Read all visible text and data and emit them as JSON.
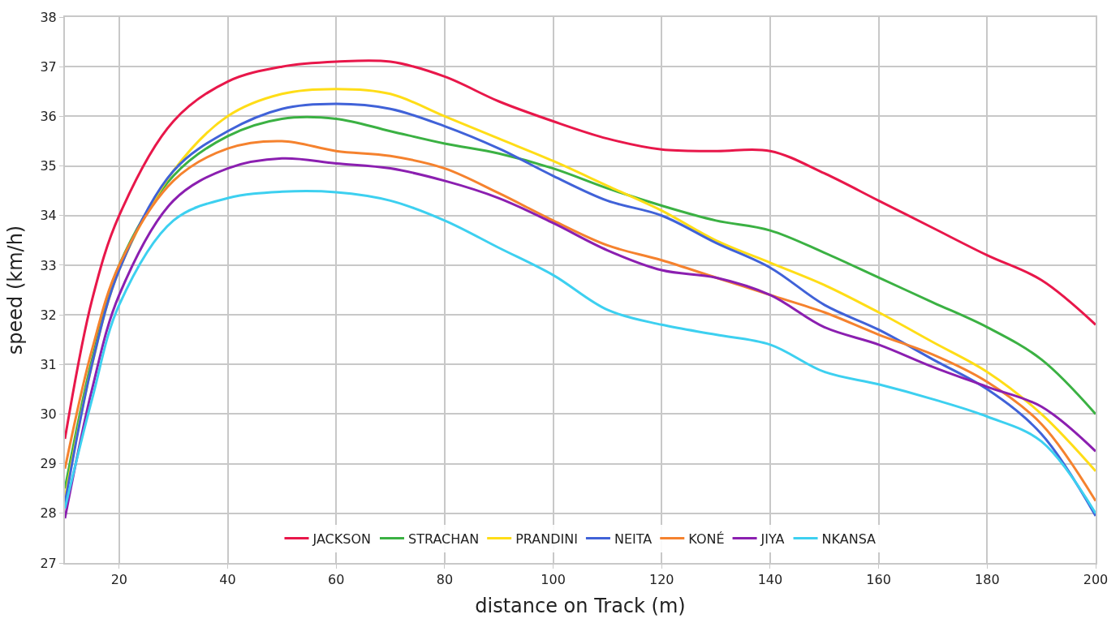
{
  "chart_data": {
    "type": "line",
    "xlabel": "distance on Track (m)",
    "ylabel": "speed (km/h)",
    "x": [
      10,
      15,
      20,
      30,
      40,
      50,
      60,
      70,
      80,
      90,
      100,
      110,
      120,
      130,
      140,
      150,
      160,
      170,
      180,
      190,
      200
    ],
    "series": [
      {
        "name": "JACKSON",
        "color": "#e8174a",
        "values": [
          29.5,
          32.3,
          34.0,
          35.9,
          36.7,
          37.0,
          37.1,
          37.1,
          36.8,
          36.3,
          35.9,
          35.55,
          35.33,
          35.3,
          35.3,
          34.85,
          34.3,
          33.75,
          33.2,
          32.7,
          31.8
        ]
      },
      {
        "name": "STRACHAN",
        "color": "#3bb143",
        "values": [
          28.5,
          31.1,
          33.0,
          34.8,
          35.6,
          35.95,
          35.95,
          35.7,
          35.45,
          35.25,
          34.95,
          34.55,
          34.2,
          33.9,
          33.7,
          33.25,
          32.75,
          32.25,
          31.75,
          31.1,
          30.0
        ]
      },
      {
        "name": "PRANDINI",
        "color": "#ffdd17",
        "values": [
          28.3,
          31.0,
          32.9,
          34.9,
          36.0,
          36.45,
          36.55,
          36.45,
          36.0,
          35.55,
          35.1,
          34.6,
          34.1,
          33.5,
          33.05,
          32.6,
          32.05,
          31.45,
          30.85,
          30.0,
          28.85
        ]
      },
      {
        "name": "NEITA",
        "color": "#4062d8",
        "values": [
          28.2,
          31.0,
          32.9,
          34.9,
          35.7,
          36.15,
          36.25,
          36.15,
          35.8,
          35.35,
          34.8,
          34.3,
          34.0,
          33.45,
          32.95,
          32.2,
          31.7,
          31.1,
          30.5,
          29.6,
          27.95
        ]
      },
      {
        "name": "KONÉ",
        "color": "#f5822e",
        "values": [
          28.9,
          31.3,
          33.0,
          34.7,
          35.35,
          35.5,
          35.3,
          35.2,
          34.95,
          34.45,
          33.9,
          33.4,
          33.1,
          32.75,
          32.4,
          32.05,
          31.6,
          31.2,
          30.65,
          29.8,
          28.25
        ]
      },
      {
        "name": "JIYA",
        "color": "#8b1fb0",
        "values": [
          27.9,
          30.5,
          32.4,
          34.3,
          34.95,
          35.15,
          35.05,
          34.95,
          34.7,
          34.35,
          33.85,
          33.3,
          32.9,
          32.75,
          32.4,
          31.75,
          31.4,
          30.95,
          30.55,
          30.15,
          29.25
        ]
      },
      {
        "name": "NKANSA",
        "color": "#3dd0f0",
        "values": [
          28.1,
          30.3,
          32.2,
          33.9,
          34.35,
          34.48,
          34.47,
          34.3,
          33.9,
          33.35,
          32.8,
          32.1,
          31.8,
          31.6,
          31.4,
          30.85,
          30.6,
          30.3,
          29.95,
          29.45,
          28.0
        ]
      }
    ],
    "xlim": [
      10,
      200
    ],
    "xticks": [
      20,
      40,
      60,
      80,
      100,
      120,
      140,
      160,
      180,
      200
    ],
    "ylim": [
      27,
      38
    ],
    "yticks": [
      27,
      28,
      29,
      30,
      31,
      32,
      33,
      34,
      35,
      36,
      37,
      38
    ],
    "grid": true,
    "legend": "bottom",
    "marker": "none",
    "line_style": "solid"
  }
}
